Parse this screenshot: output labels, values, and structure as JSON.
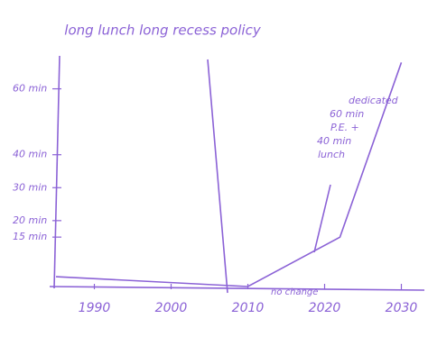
{
  "chart_data": {
    "type": "line",
    "title": "long lunch long recess policy",
    "x": [
      1985,
      2010,
      2022,
      2030
    ],
    "values": [
      3,
      0,
      15,
      68
    ],
    "color": "#8b62d6",
    "xlim": [
      1985,
      2033
    ],
    "xticks": [
      1990,
      2000,
      2010,
      2020,
      2030
    ],
    "ylim": [
      0,
      70
    ],
    "yticks": [
      {
        "value": 15,
        "label": "15 min"
      },
      {
        "value": 20,
        "label": "20 min"
      },
      {
        "value": 30,
        "label": "30 min"
      },
      {
        "value": 40,
        "label": "40 min"
      },
      {
        "value": 60,
        "label": "60 min"
      }
    ],
    "annotations": [
      {
        "lines": [
          "no change"
        ]
      },
      {
        "lines": [
          "dedicated",
          "60 min",
          "P.E. +",
          "40 min",
          "lunch"
        ]
      }
    ]
  }
}
